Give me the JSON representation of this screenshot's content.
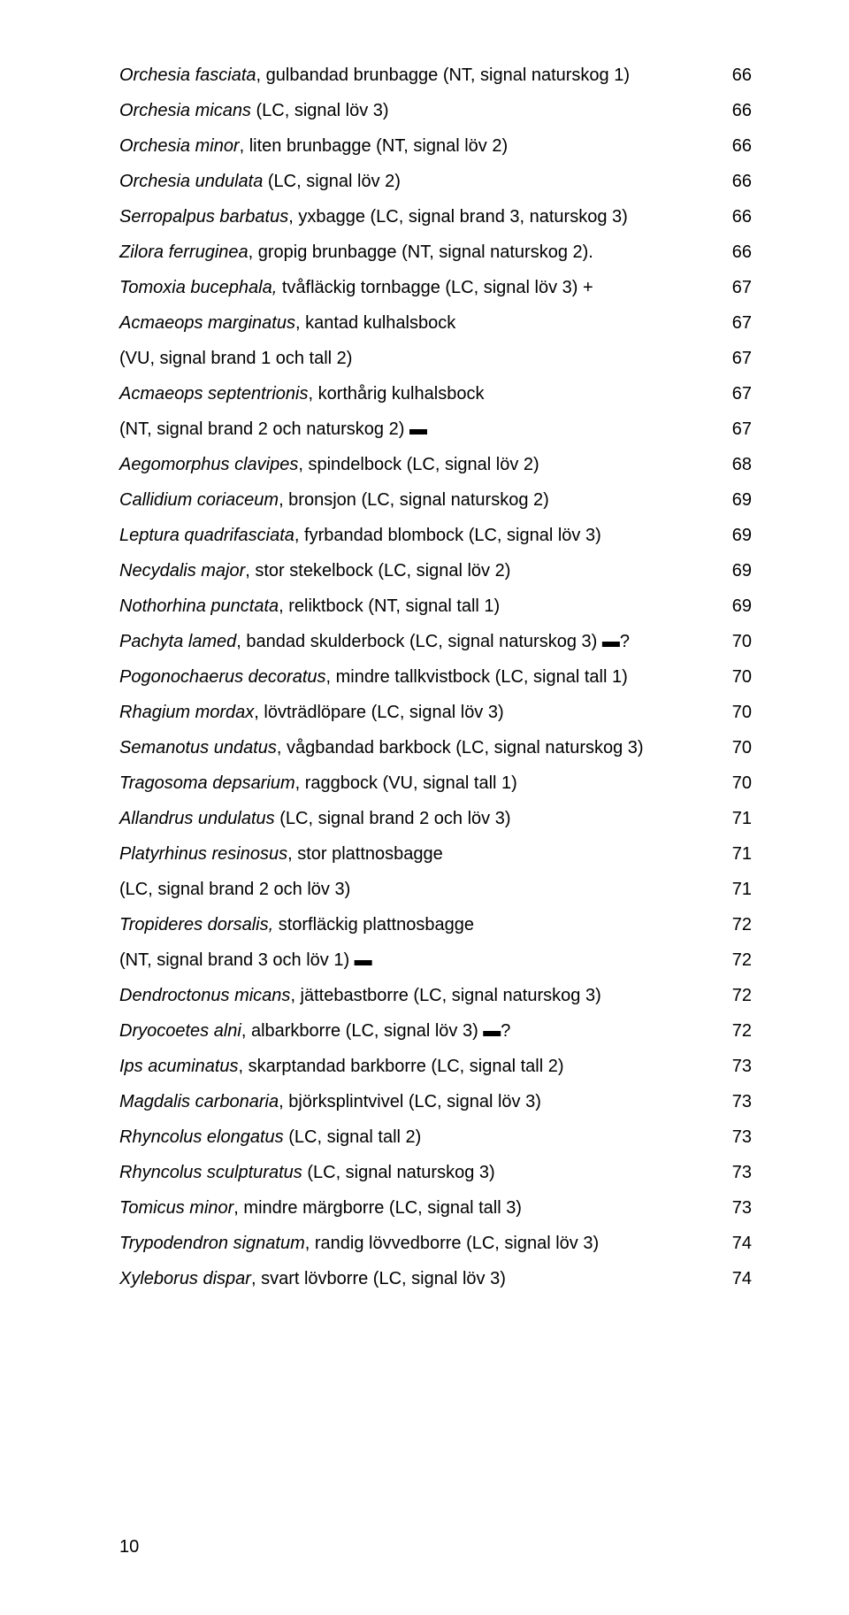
{
  "font": {
    "family": "Arial",
    "size_pt": 20,
    "line_height": 2.0,
    "color": "#000000"
  },
  "background": "#ffffff",
  "footer": "10",
  "entries": [
    {
      "italic": "Orchesia fasciata",
      "rest": ", gulbandad brunbagge (NT, signal naturskog 1)",
      "page": "66"
    },
    {
      "italic": "Orchesia micans",
      "rest": " (LC, signal löv 3)",
      "page": "66"
    },
    {
      "italic": "Orchesia minor",
      "rest": ", liten brunbagge (NT, signal löv 2)",
      "page": "66"
    },
    {
      "italic": "Orchesia undulata",
      "rest": " (LC, signal löv 2)",
      "page": "66"
    },
    {
      "italic": "Serropalpus barbatus",
      "rest": ", yxbagge (LC, signal brand 3, naturskog 3)",
      "page": "66"
    },
    {
      "italic": "Zilora ferruginea",
      "rest": ", gropig brunbagge (NT, signal naturskog 2).",
      "page": "66"
    },
    {
      "italic": "Tomoxia bucephala,",
      "rest": " tvåfläckig tornbagge (LC, signal löv 3)  +",
      "page": "67"
    },
    {
      "italic": "Acmaeops marginatus",
      "rest": ", kantad kulhalsbock",
      "page": "67"
    },
    {
      "italic": "",
      "rest": "(VU, signal brand 1 och tall 2)",
      "page": "67"
    },
    {
      "italic": "Acmaeops septentrionis",
      "rest": ", korthårig kulhalsbock",
      "page": "67"
    },
    {
      "italic": "",
      "rest": "(NT, signal brand 2 och naturskog 2)  ▬",
      "page": "67"
    },
    {
      "italic": "Aegomorphus clavipes",
      "rest": ", spindelbock (LC, signal löv 2)",
      "page": "68"
    },
    {
      "italic": "Callidium coriaceum",
      "rest": ", bronsjon (LC, signal naturskog 2)",
      "page": "69"
    },
    {
      "italic": "Leptura quadrifasciata",
      "rest": ", fyrbandad blombock (LC, signal löv 3)",
      "page": "69"
    },
    {
      "italic": "Necydalis major",
      "rest": ", stor stekelbock (LC, signal löv 2)",
      "page": "69"
    },
    {
      "italic": "Nothorhina punctata",
      "rest": ", reliktbock (NT, signal tall 1)",
      "page": "69"
    },
    {
      "italic": "Pachyta lamed",
      "rest": ", bandad skulderbock (LC, signal naturskog 3)    ▬?",
      "page": "70"
    },
    {
      "italic": "Pogonochaerus decoratus",
      "rest": ", mindre tallkvistbock (LC, signal tall 1)",
      "page": "70"
    },
    {
      "italic": "Rhagium mordax",
      "rest": ", lövträdlöpare (LC, signal löv 3)",
      "page": "70"
    },
    {
      "italic": "Semanotus undatus",
      "rest": ", vågbandad barkbock (LC, signal naturskog 3)",
      "page": "70"
    },
    {
      "italic": "Tragosoma depsarium",
      "rest": ", raggbock (VU, signal tall 1)",
      "page": "70"
    },
    {
      "italic": "Allandrus undulatus",
      "rest": " (LC, signal brand 2 och löv 3)",
      "page": "71"
    },
    {
      "italic": "Platyrhinus resinosus",
      "rest": ", stor plattnosbagge",
      "page": "71"
    },
    {
      "italic": "",
      "rest": "(LC, signal brand 2 och löv 3)",
      "page": "71"
    },
    {
      "italic": "Tropideres dorsalis,",
      "rest": " storfläckig plattnosbagge",
      "page": "72"
    },
    {
      "italic": "",
      "rest": "(NT, signal brand 3 och löv 1)  ▬",
      "page": "72"
    },
    {
      "italic": "Dendroctonus micans",
      "rest": ", jättebastborre (LC, signal naturskog 3)",
      "page": "72"
    },
    {
      "italic": "Dryocoetes alni",
      "rest": ", albarkborre (LC, signal löv 3)  ▬?",
      "page": "72"
    },
    {
      "italic": "Ips acuminatus",
      "rest": ", skarptandad barkborre (LC, signal tall 2)",
      "page": "73"
    },
    {
      "italic": "Magdalis carbonaria",
      "rest": ", björksplintvivel (LC, signal löv 3)",
      "page": "73"
    },
    {
      "italic": "Rhyncolus elongatus",
      "rest": " (LC, signal tall 2)",
      "page": "73"
    },
    {
      "italic": "Rhyncolus sculpturatus",
      "rest": " (LC, signal naturskog 3)",
      "page": "73"
    },
    {
      "italic": "Tomicus minor",
      "rest": ", mindre märgborre (LC, signal tall 3)",
      "page": "73"
    },
    {
      "italic": "Trypodendron signatum",
      "rest": ", randig lövvedborre (LC, signal löv 3)",
      "page": "74"
    },
    {
      "italic": "Xyleborus dispar",
      "rest": ", svart lövborre (LC, signal löv 3)",
      "page": "74"
    }
  ]
}
